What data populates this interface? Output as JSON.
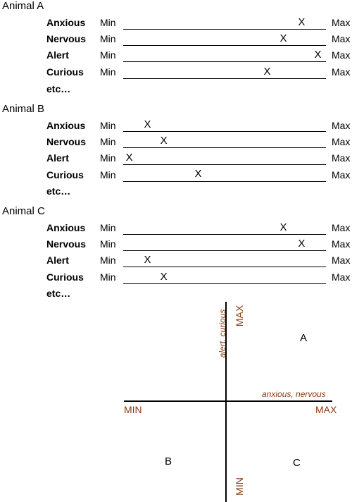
{
  "animals": [
    {
      "title": "Animal A",
      "min_label": "Min",
      "max_label": "Max",
      "more_label": "etc…",
      "traits": [
        {
          "label": "Anxious",
          "mark": "X",
          "value": 0.88
        },
        {
          "label": "Nervous",
          "mark": "X",
          "value": 0.79
        },
        {
          "label": "Alert",
          "mark": "X",
          "value": 0.96
        },
        {
          "label": "Curious",
          "mark": "X",
          "value": 0.71
        }
      ]
    },
    {
      "title": "Animal B",
      "min_label": "Min",
      "max_label": "Max",
      "more_label": "etc…",
      "traits": [
        {
          "label": "Anxious",
          "mark": "X",
          "value": 0.12
        },
        {
          "label": "Nervous",
          "mark": "X",
          "value": 0.2
        },
        {
          "label": "Alert",
          "mark": "X",
          "value": 0.03
        },
        {
          "label": "Curious",
          "mark": "X",
          "value": 0.37
        }
      ]
    },
    {
      "title": "Animal C",
      "min_label": "Min",
      "max_label": "Max",
      "more_label": "etc…",
      "traits": [
        {
          "label": "Anxious",
          "mark": "X",
          "value": 0.79
        },
        {
          "label": "Nervous",
          "mark": "X",
          "value": 0.88
        },
        {
          "label": "Alert",
          "mark": "X",
          "value": 0.12
        },
        {
          "label": "Curious",
          "mark": "X",
          "value": 0.2
        }
      ]
    }
  ],
  "plot": {
    "x_min": "MIN",
    "x_max": "MAX",
    "y_min": "MIN",
    "y_max": "MAX",
    "x_axis_caption": "anxious, nervous",
    "y_axis_caption": "alert, curious",
    "points": [
      "A",
      "B",
      "C"
    ],
    "axis_text_color": "#8B3A0E"
  }
}
